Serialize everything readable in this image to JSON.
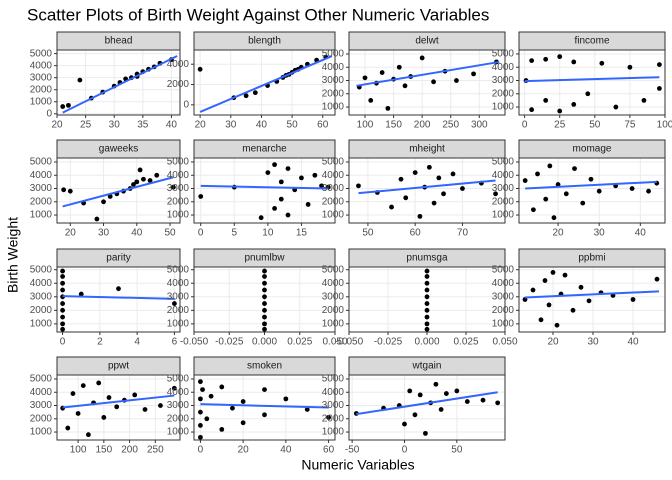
{
  "title": "Scatter Plots of Birth Weight Against Other Numeric Variables",
  "xlabel": "Numeric Variables",
  "ylabel": "Birth Weight",
  "chart_data": [
    {
      "type": "scatter",
      "title": "bhead",
      "color": "#000000",
      "fit_color": "#3366ff",
      "x": [
        21,
        22,
        24,
        26,
        28,
        30,
        31,
        32,
        33,
        34,
        34,
        35,
        36,
        37,
        38,
        40
      ],
      "y": [
        600,
        700,
        2800,
        1300,
        1800,
        2300,
        2600,
        2900,
        3000,
        3300,
        3100,
        3500,
        3700,
        3900,
        4200,
        4500
      ],
      "fit": {
        "x": [
          21,
          41
        ],
        "y": [
          100,
          4800
        ]
      },
      "xlim": [
        20,
        41.5
      ],
      "ylim": [
        -100,
        5300
      ],
      "xticks": [
        20,
        25,
        30,
        35,
        40
      ],
      "yticks": [
        0,
        1000,
        2000,
        3000,
        4000,
        5000
      ]
    },
    {
      "type": "scatter",
      "title": "blength",
      "color": "#000000",
      "fit_color": "#3366ff",
      "x": [
        20,
        31,
        35,
        38,
        42,
        45,
        47,
        48,
        49,
        50,
        51,
        52,
        53,
        55,
        58,
        61
      ],
      "y": [
        3500,
        700,
        900,
        1200,
        1900,
        2300,
        2700,
        2900,
        3000,
        3200,
        3400,
        3500,
        3700,
        4000,
        4400,
        4700
      ],
      "fit": {
        "x": [
          20,
          63
        ],
        "y": [
          -700,
          4800
        ]
      },
      "xlim": [
        18,
        64
      ],
      "ylim": [
        -1000,
        5400
      ],
      "xticks": [
        20,
        30,
        40,
        50,
        60
      ],
      "yticks": [
        0,
        2000,
        4000
      ]
    },
    {
      "type": "scatter",
      "title": "delwt",
      "color": "#000000",
      "fit_color": "#3366ff",
      "x": [
        90,
        100,
        110,
        120,
        130,
        140,
        150,
        160,
        170,
        180,
        200,
        220,
        240,
        260,
        290,
        330
      ],
      "y": [
        2500,
        3200,
        1500,
        2800,
        3600,
        900,
        3100,
        4000,
        2600,
        3300,
        4700,
        2900,
        3700,
        3000,
        3500,
        4400
      ],
      "fit": {
        "x": [
          85,
          335
        ],
        "y": [
          2600,
          4400
        ]
      },
      "xlim": [
        72,
        345
      ],
      "ylim": [
        400,
        5300
      ],
      "xticks": [
        100,
        150,
        200,
        250,
        300
      ],
      "yticks": [
        1000,
        2000,
        3000,
        4000,
        5000
      ]
    },
    {
      "type": "scatter",
      "title": "fincome",
      "color": "#000000",
      "fit_color": "#3366ff",
      "x": [
        1,
        5,
        5,
        15,
        15,
        25,
        25,
        35,
        35,
        45,
        55,
        65,
        75,
        85,
        96,
        96
      ],
      "y": [
        3000,
        800,
        4500,
        1500,
        4600,
        700,
        4800,
        1200,
        4400,
        2000,
        4300,
        1000,
        4000,
        1500,
        4200,
        2400
      ],
      "fit": {
        "x": [
          0,
          96
        ],
        "y": [
          2950,
          3250
        ]
      },
      "xlim": [
        -4,
        100
      ],
      "ylim": [
        400,
        5300
      ],
      "xticks": [
        0,
        25,
        50,
        75,
        100
      ],
      "yticks": [
        1000,
        2000,
        3000,
        4000,
        5000
      ]
    },
    {
      "type": "scatter",
      "title": "gaweeks",
      "color": "#000000",
      "fit_color": "#3366ff",
      "x": [
        18,
        20,
        24,
        28,
        30,
        32,
        34,
        36,
        38,
        39,
        40,
        41,
        42,
        44,
        46,
        51
      ],
      "y": [
        2900,
        2800,
        1900,
        700,
        2000,
        2400,
        2600,
        2800,
        3000,
        3300,
        3500,
        4400,
        3700,
        3600,
        4000,
        3100
      ],
      "fit": {
        "x": [
          17.7,
          51
        ],
        "y": [
          1650,
          3850
        ]
      },
      "xlim": [
        16,
        53
      ],
      "ylim": [
        400,
        5300
      ],
      "xticks": [
        20,
        30,
        40,
        50
      ],
      "yticks": [
        1000,
        2000,
        3000,
        4000,
        5000
      ]
    },
    {
      "type": "scatter",
      "title": "menarche",
      "color": "#000000",
      "fit_color": "#3366ff",
      "x": [
        0,
        5,
        9,
        10,
        11,
        11,
        12,
        12,
        13,
        13,
        14,
        15,
        16,
        17,
        18,
        19
      ],
      "y": [
        2400,
        3100,
        800,
        4200,
        1500,
        4800,
        2200,
        3500,
        1000,
        4500,
        2900,
        3800,
        1800,
        4000,
        3200,
        3100
      ],
      "fit": {
        "x": [
          0,
          19
        ],
        "y": [
          3200,
          3000
        ]
      },
      "xlim": [
        -1,
        20
      ],
      "ylim": [
        400,
        5300
      ],
      "xticks": [
        0,
        5,
        10,
        15
      ],
      "yticks": [
        1000,
        2000,
        3000,
        4000,
        5000
      ]
    },
    {
      "type": "scatter",
      "title": "mheight",
      "color": "#000000",
      "fit_color": "#3366ff",
      "x": [
        48,
        52,
        55,
        57,
        58,
        60,
        61,
        62,
        63,
        64,
        65,
        66,
        68,
        70,
        74,
        77
      ],
      "y": [
        3200,
        2700,
        1600,
        3700,
        2300,
        4200,
        900,
        3100,
        4600,
        1900,
        3800,
        2600,
        4100,
        3000,
        3400,
        2600
      ],
      "fit": {
        "x": [
          48,
          77
        ],
        "y": [
          2650,
          3600
        ]
      },
      "xlim": [
        46,
        79
      ],
      "ylim": [
        400,
        5300
      ],
      "xticks": [
        50,
        60,
        70
      ],
      "yticks": [
        1000,
        2000,
        3000,
        4000,
        5000
      ]
    },
    {
      "type": "scatter",
      "title": "momage",
      "color": "#000000",
      "fit_color": "#3366ff",
      "x": [
        12,
        14,
        15,
        17,
        18,
        19,
        20,
        22,
        24,
        26,
        28,
        30,
        34,
        38,
        42,
        44
      ],
      "y": [
        3600,
        1400,
        4100,
        2200,
        4700,
        800,
        3300,
        2600,
        4500,
        1900,
        3700,
        2800,
        3200,
        3000,
        2800,
        3400
      ],
      "fit": {
        "x": [
          12,
          44
        ],
        "y": [
          3000,
          3500
        ]
      },
      "xlim": [
        10.5,
        46
      ],
      "ylim": [
        400,
        5300
      ],
      "xticks": [
        20,
        30,
        40
      ],
      "yticks": [
        1000,
        2000,
        3000,
        4000,
        5000
      ]
    },
    {
      "type": "scatter",
      "title": "parity",
      "color": "#000000",
      "fit_color": "#3366ff",
      "x": [
        0,
        0,
        0,
        0,
        0,
        0,
        0,
        0,
        0,
        0,
        1,
        3,
        6
      ],
      "y": [
        600,
        1000,
        1500,
        2000,
        2500,
        3000,
        3500,
        4000,
        4500,
        4900,
        3200,
        3600,
        2500
      ],
      "fit": {
        "x": [
          0,
          6
        ],
        "y": [
          3050,
          2850
        ]
      },
      "xlim": [
        -0.3,
        6.3
      ],
      "ylim": [
        400,
        5200
      ],
      "xticks": [
        0,
        2,
        4,
        6
      ],
      "yticks": [
        1000,
        2000,
        3000,
        4000,
        5000
      ]
    },
    {
      "type": "scatter",
      "title": "pnumlbw",
      "color": "#000000",
      "fit_color": "#3366ff",
      "x": [
        0,
        0,
        0,
        0,
        0,
        0,
        0,
        0,
        0,
        0
      ],
      "y": [
        600,
        1000,
        1500,
        2000,
        2500,
        3000,
        3500,
        4000,
        4500,
        4900
      ],
      "fit": {
        "x": [
          0,
          0
        ],
        "y": [
          3000,
          3000
        ]
      },
      "xlim": [
        -0.05,
        0.05
      ],
      "ylim": [
        400,
        5200
      ],
      "xticks": [
        {
          "value": -0.05,
          "label": "-0.050"
        },
        {
          "value": -0.025,
          "label": "-0.025"
        },
        {
          "value": 0,
          "label": "0.000"
        },
        {
          "value": 0.025,
          "label": "0.025"
        },
        {
          "value": 0.05,
          "label": "0.050"
        }
      ],
      "yticks": [
        1000,
        2000,
        3000,
        4000,
        5000
      ]
    },
    {
      "type": "scatter",
      "title": "pnumsga",
      "color": "#000000",
      "fit_color": "#3366ff",
      "x": [
        0,
        0,
        0,
        0,
        0,
        0,
        0,
        0,
        0,
        0
      ],
      "y": [
        600,
        1000,
        1500,
        2000,
        2500,
        3000,
        3500,
        4000,
        4500,
        4900
      ],
      "fit": {
        "x": [
          0,
          0
        ],
        "y": [
          3000,
          3000
        ]
      },
      "xlim": [
        -0.05,
        0.05
      ],
      "ylim": [
        400,
        5200
      ],
      "xticks": [
        {
          "value": -0.05,
          "label": "-0.050"
        },
        {
          "value": -0.025,
          "label": "-0.025"
        },
        {
          "value": 0,
          "label": "0.000"
        },
        {
          "value": 0.025,
          "label": "0.025"
        },
        {
          "value": 0.05,
          "label": "0.050"
        }
      ],
      "yticks": [
        1000,
        2000,
        3000,
        4000,
        5000
      ]
    },
    {
      "type": "scatter",
      "title": "ppbmi",
      "color": "#000000",
      "fit_color": "#3366ff",
      "x": [
        13,
        15,
        17,
        18,
        19,
        20,
        21,
        22,
        23,
        25,
        27,
        29,
        32,
        35,
        40,
        46
      ],
      "y": [
        2800,
        3500,
        1300,
        4200,
        2400,
        4800,
        900,
        3200,
        4600,
        2000,
        3700,
        2700,
        3300,
        3100,
        2800,
        4300
      ],
      "fit": {
        "x": [
          13,
          46.5
        ],
        "y": [
          2950,
          3400
        ]
      },
      "xlim": [
        11.5,
        48
      ],
      "ylim": [
        400,
        5200
      ],
      "xticks": [
        20,
        30,
        40
      ],
      "yticks": [
        1000,
        2000,
        3000,
        4000,
        5000
      ]
    },
    {
      "type": "scatter",
      "title": "ppwt",
      "color": "#000000",
      "fit_color": "#3366ff",
      "x": [
        70,
        80,
        90,
        100,
        110,
        120,
        130,
        140,
        150,
        160,
        175,
        190,
        210,
        230,
        260,
        287
      ],
      "y": [
        2800,
        1300,
        3900,
        2400,
        4500,
        800,
        3200,
        4700,
        2100,
        3600,
        2900,
        3400,
        3800,
        2700,
        3000,
        4300
      ],
      "fit": {
        "x": [
          70,
          287
        ],
        "y": [
          2850,
          3750
        ]
      },
      "xlim": [
        59,
        298
      ],
      "ylim": [
        400,
        5300
      ],
      "xticks": [
        100,
        150,
        200,
        250
      ],
      "yticks": [
        1000,
        2000,
        3000,
        4000,
        5000
      ]
    },
    {
      "type": "scatter",
      "title": "smoken",
      "color": "#000000",
      "fit_color": "#3366ff",
      "x": [
        0,
        0,
        0,
        0,
        0,
        1,
        3,
        5,
        10,
        10,
        15,
        20,
        20,
        30,
        30,
        40,
        50,
        60
      ],
      "y": [
        600,
        1500,
        2500,
        3500,
        4800,
        4200,
        2000,
        3700,
        1200,
        4400,
        2800,
        3300,
        1700,
        4200,
        2300,
        3500,
        2700,
        2100
      ],
      "fit": {
        "x": [
          0,
          60
        ],
        "y": [
          3100,
          2850
        ]
      },
      "xlim": [
        -3,
        63
      ],
      "ylim": [
        400,
        5300
      ],
      "xticks": [
        0,
        20,
        40,
        60
      ],
      "yticks": [
        1000,
        2000,
        3000,
        4000,
        5000
      ]
    },
    {
      "type": "scatter",
      "title": "wtgain",
      "color": "#000000",
      "fit_color": "#3366ff",
      "x": [
        -46,
        -20,
        -5,
        0,
        5,
        10,
        15,
        20,
        25,
        30,
        35,
        40,
        50,
        60,
        75,
        89
      ],
      "y": [
        2400,
        2800,
        3000,
        1600,
        4100,
        2300,
        3800,
        900,
        3200,
        4600,
        2700,
        3900,
        4100,
        3300,
        3400,
        3200
      ],
      "fit": {
        "x": [
          -46,
          89
        ],
        "y": [
          2350,
          4000
        ]
      },
      "xlim": [
        -53,
        96
      ],
      "ylim": [
        400,
        5300
      ],
      "xticks": [
        -50,
        0,
        50
      ],
      "yticks": [
        1000,
        2000,
        3000,
        4000,
        5000
      ]
    }
  ]
}
